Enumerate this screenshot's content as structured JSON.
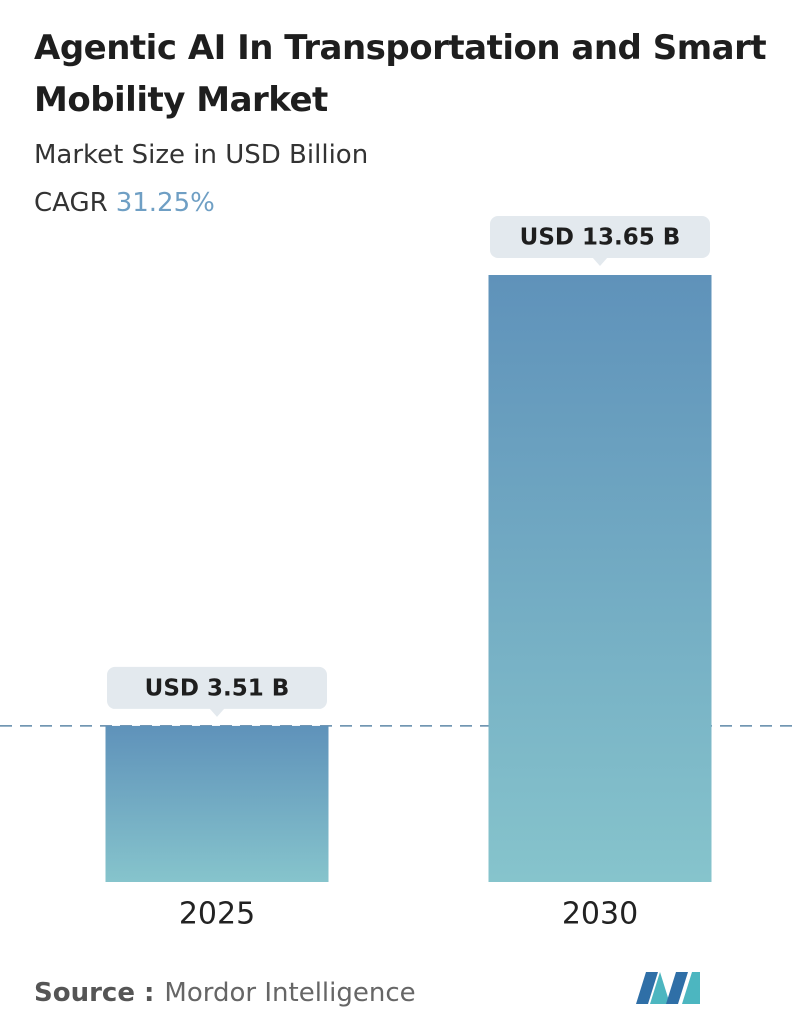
{
  "chart_data": {
    "type": "bar",
    "title": "Agentic AI In Transportation and Smart Mobility Market",
    "subtitle": "Market Size in USD Billion",
    "cagr_label": "CAGR",
    "cagr": {
      "value": 31.25,
      "label": "31.25%"
    },
    "categories": [
      "2025",
      "2030"
    ],
    "values": [
      3.51,
      13.65
    ],
    "value_labels": [
      "USD 3.51 B",
      "USD 13.65 B"
    ],
    "color": "#6a9fc0",
    "source_label": "Source :",
    "source": "Mordor Intelligence"
  }
}
